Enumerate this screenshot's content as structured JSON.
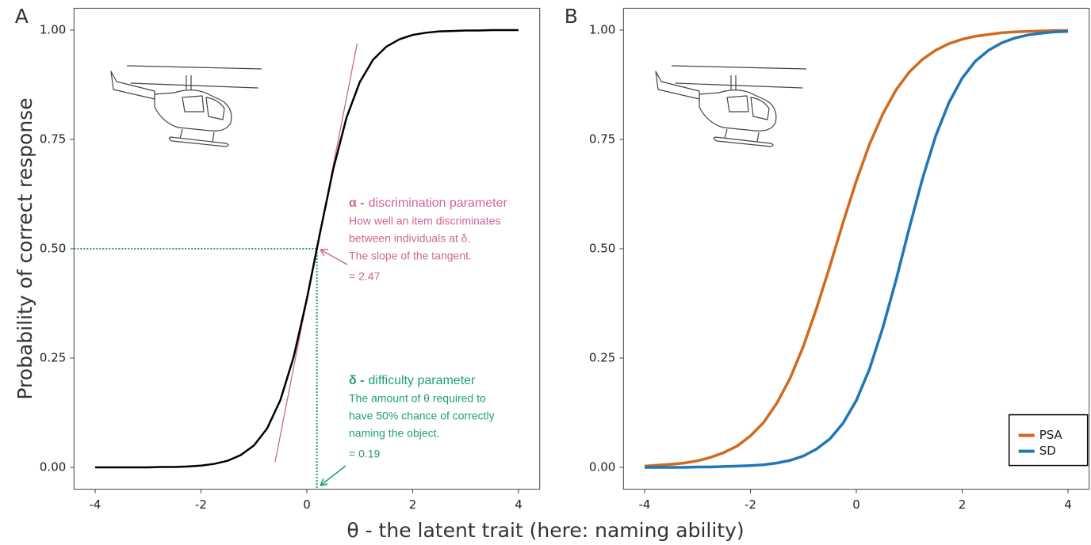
{
  "chart_data": [
    {
      "type": "line",
      "panel_label": "A",
      "ylabel": "Probability of correct response",
      "xlabel": "θ - the latent trait (here: naming ability)",
      "xlim": [
        -4.4,
        4.4
      ],
      "xticks": [
        -4,
        -2,
        0,
        2,
        4
      ],
      "ylim": [
        -0.05,
        1.05
      ],
      "yticks": [
        {
          "value": 0,
          "label": "0.00"
        },
        {
          "value": 0.25,
          "label": "0.25"
        },
        {
          "value": 0.5,
          "label": "0.50"
        },
        {
          "value": 0.75,
          "label": "0.75"
        },
        {
          "value": 1,
          "label": "1.00"
        }
      ],
      "color": "#000000",
      "x": [
        -4,
        -3.75,
        -3.5,
        -3.25,
        -3,
        -2.75,
        -2.5,
        -2.25,
        -2,
        -1.75,
        -1.5,
        -1.25,
        -1,
        -0.75,
        -0.5,
        -0.25,
        0,
        0.25,
        0.5,
        0.75,
        1,
        1.25,
        1.5,
        1.75,
        2,
        2.25,
        2.5,
        2.75,
        3,
        3.25,
        3.5,
        3.75,
        4
      ],
      "values": [
        0,
        0,
        0,
        0,
        0,
        0.001,
        0.001,
        0.002,
        0.004,
        0.008,
        0.015,
        0.028,
        0.05,
        0.089,
        0.154,
        0.252,
        0.385,
        0.537,
        0.683,
        0.8,
        0.881,
        0.932,
        0.962,
        0.979,
        0.989,
        0.994,
        0.997,
        0.998,
        0.999,
        0.999,
        1,
        1,
        1
      ],
      "tangent": {
        "x": [
          -0.6,
          0.95
        ],
        "values": [
          0.012,
          0.969
        ],
        "color": "#cc6699"
      },
      "guide": {
        "x": 0.19,
        "y": 0.5,
        "color": "#1f9e77"
      },
      "alpha_annotation": {
        "symbol": "α -",
        "title": "discrimination parameter",
        "lines": [
          "How well an item discriminates",
          "between individuals at δ.",
          "The slope of the tangent."
        ],
        "value": "= 2.47",
        "color": "#cc6699"
      },
      "delta_annotation": {
        "symbol": "δ -",
        "title": "difficulty parameter",
        "lines": [
          "The amount of θ required to",
          "have 50% chance of correctly",
          "naming the object."
        ],
        "value": "= 0.19",
        "color": "#1f9e77"
      }
    },
    {
      "type": "line",
      "panel_label": "B",
      "xlim": [
        -4.4,
        4.4
      ],
      "xticks": [
        -4,
        -2,
        0,
        2,
        4
      ],
      "ylim": [
        -0.05,
        1.05
      ],
      "yticks": [
        {
          "value": 0,
          "label": "0.00"
        },
        {
          "value": 0.25,
          "label": "0.25"
        },
        {
          "value": 0.5,
          "label": "0.50"
        },
        {
          "value": 0.75,
          "label": "0.75"
        },
        {
          "value": 1,
          "label": "1.00"
        }
      ],
      "legend_position": "bottom-right",
      "x": [
        -4,
        -3.75,
        -3.5,
        -3.25,
        -3,
        -2.75,
        -2.5,
        -2.25,
        -2,
        -1.75,
        -1.5,
        -1.25,
        -1,
        -0.75,
        -0.5,
        -0.25,
        0,
        0.25,
        0.5,
        0.75,
        1,
        1.25,
        1.5,
        1.75,
        2,
        2.25,
        2.5,
        2.75,
        3,
        3.25,
        3.5,
        3.75,
        4
      ],
      "series": [
        {
          "name": "PSA",
          "color": "#d2691e",
          "values": [
            0.003,
            0.005,
            0.007,
            0.01,
            0.015,
            0.023,
            0.034,
            0.049,
            0.072,
            0.103,
            0.147,
            0.204,
            0.277,
            0.364,
            0.46,
            0.56,
            0.655,
            0.739,
            0.808,
            0.863,
            0.904,
            0.933,
            0.954,
            0.969,
            0.979,
            0.986,
            0.99,
            0.994,
            0.996,
            0.997,
            0.998,
            0.999,
            0.999
          ]
        },
        {
          "name": "SD",
          "color": "#1f77b4",
          "values": [
            0,
            0,
            0,
            0,
            0.001,
            0.001,
            0.002,
            0.003,
            0.004,
            0.006,
            0.01,
            0.016,
            0.026,
            0.042,
            0.065,
            0.101,
            0.153,
            0.225,
            0.319,
            0.428,
            0.547,
            0.66,
            0.758,
            0.834,
            0.89,
            0.929,
            0.954,
            0.971,
            0.982,
            0.989,
            0.993,
            0.996,
            0.997
          ]
        }
      ]
    }
  ]
}
